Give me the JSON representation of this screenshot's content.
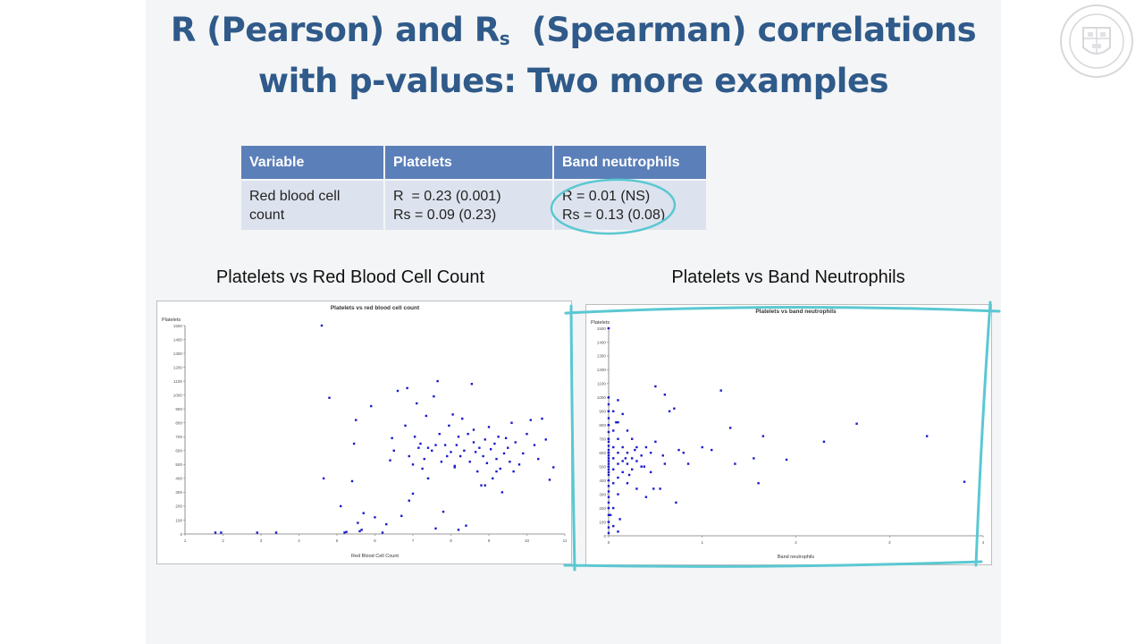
{
  "slide": {
    "title_line1_prefix": "R (Pearson) and R",
    "title_line1_sub": "s",
    "title_line1_suffix": "  (Spearman) correlations",
    "title_line2": "with p-values: Two more examples"
  },
  "table": {
    "headers": [
      "Variable",
      "Platelets",
      "Band neutrophils"
    ],
    "rows": [
      {
        "variable": [
          "Red blood cell",
          "count"
        ],
        "platelets": [
          "R  = 0.23 (0.001)",
          "Rs = 0.09 (0.23)"
        ],
        "band_neutrophils": [
          "R = 0.01 (NS)",
          "Rs = 0.13 (0.08)"
        ]
      }
    ]
  },
  "charts_headings": {
    "left": "Platelets vs Red Blood Cell Count",
    "right": "Platelets vs Band Neutrophils"
  },
  "colors": {
    "title": "#2f5a8a",
    "table_header": "#5b7fb9",
    "table_cell": "#dde3ee",
    "point": "#1a1acc",
    "annotation": "#5ac8d2"
  },
  "chart_data": [
    {
      "type": "scatter",
      "title": "Platelets vs red blood cell count",
      "xlabel": "Red Blood Cell Count",
      "ylabel": "Platelets",
      "xlim": [
        1,
        11
      ],
      "ylim": [
        0,
        1500
      ],
      "xticks": [
        1,
        2,
        3,
        4,
        5,
        6,
        7,
        8,
        9,
        10,
        11
      ],
      "yticks": [
        0,
        100,
        200,
        300,
        400,
        500,
        600,
        700,
        800,
        900,
        1000,
        1100,
        1200,
        1300,
        1400,
        1500
      ],
      "grid": false,
      "points": [
        [
          1.8,
          10
        ],
        [
          1.95,
          10
        ],
        [
          2.9,
          10
        ],
        [
          3.4,
          10
        ],
        [
          4.6,
          1500
        ],
        [
          4.65,
          400
        ],
        [
          4.8,
          980
        ],
        [
          5.1,
          200
        ],
        [
          5.2,
          10
        ],
        [
          5.25,
          15
        ],
        [
          5.4,
          380
        ],
        [
          5.45,
          650
        ],
        [
          5.5,
          820
        ],
        [
          5.55,
          80
        ],
        [
          5.6,
          20
        ],
        [
          5.65,
          30
        ],
        [
          5.7,
          150
        ],
        [
          5.9,
          920
        ],
        [
          6.0,
          120
        ],
        [
          6.2,
          10
        ],
        [
          6.4,
          530
        ],
        [
          6.45,
          690
        ],
        [
          6.5,
          600
        ],
        [
          6.6,
          1030
        ],
        [
          6.7,
          130
        ],
        [
          6.8,
          780
        ],
        [
          6.85,
          1050
        ],
        [
          6.9,
          560
        ],
        [
          7.0,
          290
        ],
        [
          7.05,
          700
        ],
        [
          7.1,
          940
        ],
        [
          7.15,
          620
        ],
        [
          7.2,
          650
        ],
        [
          7.25,
          470
        ],
        [
          7.3,
          540
        ],
        [
          7.35,
          850
        ],
        [
          7.4,
          400
        ],
        [
          7.5,
          600
        ],
        [
          7.55,
          990
        ],
        [
          7.6,
          640
        ],
        [
          7.65,
          1100
        ],
        [
          7.7,
          720
        ],
        [
          7.75,
          520
        ],
        [
          7.8,
          160
        ],
        [
          7.85,
          640
        ],
        [
          7.9,
          560
        ],
        [
          7.95,
          780
        ],
        [
          8.0,
          590
        ],
        [
          8.05,
          860
        ],
        [
          8.1,
          490
        ],
        [
          8.15,
          640
        ],
        [
          8.2,
          700
        ],
        [
          8.25,
          560
        ],
        [
          8.3,
          830
        ],
        [
          8.35,
          600
        ],
        [
          8.4,
          60
        ],
        [
          8.45,
          720
        ],
        [
          8.5,
          520
        ],
        [
          8.55,
          1080
        ],
        [
          8.6,
          660
        ],
        [
          8.65,
          590
        ],
        [
          8.7,
          450
        ],
        [
          8.75,
          620
        ],
        [
          8.8,
          350
        ],
        [
          8.85,
          560
        ],
        [
          8.9,
          680
        ],
        [
          8.95,
          510
        ],
        [
          9.0,
          770
        ],
        [
          9.05,
          610
        ],
        [
          9.1,
          400
        ],
        [
          9.15,
          650
        ],
        [
          9.2,
          540
        ],
        [
          9.25,
          700
        ],
        [
          9.3,
          470
        ],
        [
          9.35,
          300
        ],
        [
          9.4,
          580
        ],
        [
          9.45,
          690
        ],
        [
          9.5,
          620
        ],
        [
          9.55,
          520
        ],
        [
          9.6,
          800
        ],
        [
          9.65,
          450
        ],
        [
          9.7,
          660
        ],
        [
          9.8,
          500
        ],
        [
          9.9,
          580
        ],
        [
          10.0,
          720
        ],
        [
          10.1,
          820
        ],
        [
          10.2,
          640
        ],
        [
          10.3,
          540
        ],
        [
          10.4,
          830
        ],
        [
          10.5,
          680
        ],
        [
          10.6,
          390
        ],
        [
          10.7,
          480
        ],
        [
          6.3,
          70
        ],
        [
          7.6,
          40
        ],
        [
          8.2,
          30
        ],
        [
          8.9,
          350
        ],
        [
          9.2,
          450
        ],
        [
          7.4,
          620
        ],
        [
          6.9,
          240
        ],
        [
          8.6,
          750
        ],
        [
          7.0,
          500
        ],
        [
          8.1,
          480
        ]
      ]
    },
    {
      "type": "scatter",
      "title": "Platelets vs band neutrophils",
      "xlabel": "Band neutrophils",
      "ylabel": "Platelets",
      "xlim": [
        0,
        4
      ],
      "ylim": [
        0,
        1500
      ],
      "xticks": [
        0,
        1,
        2,
        3,
        4
      ],
      "yticks": [
        0,
        100,
        200,
        300,
        400,
        500,
        600,
        700,
        800,
        900,
        1000,
        1100,
        1200,
        1300,
        1400,
        1500
      ],
      "grid": false,
      "points": [
        [
          0,
          1500
        ],
        [
          0,
          1000
        ],
        [
          0,
          950
        ],
        [
          0,
          900
        ],
        [
          0,
          850
        ],
        [
          0,
          800
        ],
        [
          0,
          750
        ],
        [
          0,
          700
        ],
        [
          0,
          680
        ],
        [
          0,
          650
        ],
        [
          0,
          620
        ],
        [
          0,
          600
        ],
        [
          0,
          580
        ],
        [
          0,
          560
        ],
        [
          0,
          540
        ],
        [
          0,
          520
        ],
        [
          0,
          500
        ],
        [
          0,
          480
        ],
        [
          0,
          460
        ],
        [
          0,
          440
        ],
        [
          0,
          400
        ],
        [
          0,
          360
        ],
        [
          0,
          320
        ],
        [
          0,
          280
        ],
        [
          0,
          240
        ],
        [
          0,
          200
        ],
        [
          0,
          150
        ],
        [
          0,
          100
        ],
        [
          0,
          60
        ],
        [
          0,
          20
        ],
        [
          0.05,
          900
        ],
        [
          0.05,
          760
        ],
        [
          0.05,
          640
        ],
        [
          0.05,
          560
        ],
        [
          0.05,
          480
        ],
        [
          0.05,
          380
        ],
        [
          0.05,
          200
        ],
        [
          0.05,
          70
        ],
        [
          0.1,
          980
        ],
        [
          0.1,
          820
        ],
        [
          0.1,
          700
        ],
        [
          0.1,
          600
        ],
        [
          0.1,
          520
        ],
        [
          0.1,
          420
        ],
        [
          0.1,
          300
        ],
        [
          0.1,
          30
        ],
        [
          0.15,
          880
        ],
        [
          0.15,
          640
        ],
        [
          0.15,
          540
        ],
        [
          0.15,
          460
        ],
        [
          0.2,
          760
        ],
        [
          0.2,
          600
        ],
        [
          0.2,
          520
        ],
        [
          0.2,
          380
        ],
        [
          0.25,
          700
        ],
        [
          0.25,
          560
        ],
        [
          0.25,
          480
        ],
        [
          0.3,
          640
        ],
        [
          0.3,
          540
        ],
        [
          0.3,
          340
        ],
        [
          0.35,
          580
        ],
        [
          0.35,
          500
        ],
        [
          0.4,
          640
        ],
        [
          0.4,
          280
        ],
        [
          0.45,
          600
        ],
        [
          0.45,
          460
        ],
        [
          0.5,
          1080
        ],
        [
          0.5,
          680
        ],
        [
          0.55,
          340
        ],
        [
          0.6,
          1020
        ],
        [
          0.6,
          520
        ],
        [
          0.65,
          900
        ],
        [
          0.7,
          920
        ],
        [
          0.72,
          240
        ],
        [
          0.75,
          620
        ],
        [
          0.8,
          600
        ],
        [
          0.85,
          520
        ],
        [
          1.0,
          640
        ],
        [
          1.1,
          620
        ],
        [
          1.2,
          1050
        ],
        [
          1.3,
          780
        ],
        [
          1.35,
          520
        ],
        [
          1.55,
          560
        ],
        [
          1.6,
          380
        ],
        [
          1.65,
          720
        ],
        [
          1.9,
          550
        ],
        [
          2.3,
          680
        ],
        [
          2.65,
          810
        ],
        [
          3.4,
          720
        ],
        [
          3.8,
          390
        ],
        [
          0.02,
          150
        ],
        [
          0.08,
          820
        ],
        [
          0.12,
          120
        ],
        [
          0.18,
          560
        ],
        [
          0.22,
          440
        ],
        [
          0.28,
          620
        ],
        [
          0.38,
          500
        ],
        [
          0.48,
          340
        ],
        [
          0.58,
          580
        ]
      ]
    }
  ]
}
